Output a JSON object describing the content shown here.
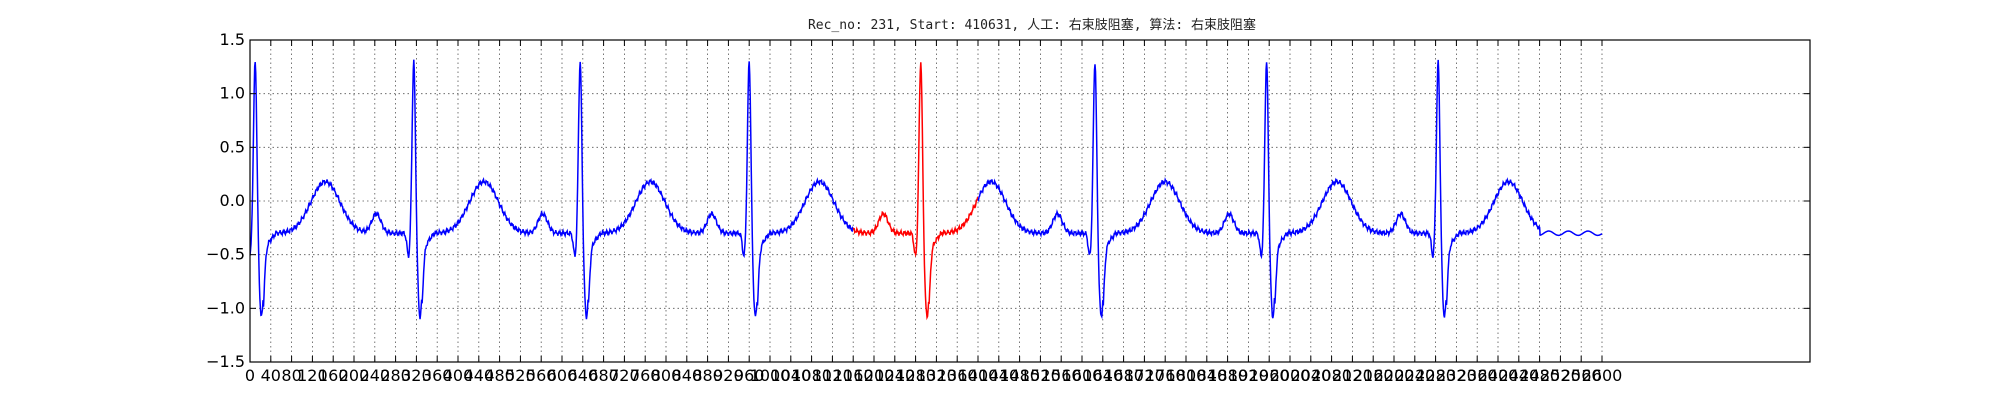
{
  "chart_data": {
    "type": "line",
    "title": "Rec_no: 231, Start: 410631, 人工: 右束肢阻塞, 算法: 右束肢阻塞",
    "xlabel": "",
    "ylabel": "",
    "xlim": [
      0,
      3000
    ],
    "ylim": [
      -1.5,
      1.5
    ],
    "grid": true,
    "y_ticks": [
      1.5,
      1.0,
      0.5,
      0.0,
      -0.5,
      -1.0,
      -1.5
    ],
    "y_tick_labels": [
      "1.5",
      "1.0",
      "0.5",
      "0.0",
      "−0.5",
      "−1.0",
      "−1.5"
    ],
    "x_ticks": [
      0,
      40,
      80,
      120,
      160,
      200,
      240,
      280,
      320,
      360,
      400,
      440,
      480,
      520,
      560,
      600,
      640,
      680,
      720,
      760,
      800,
      840,
      880,
      920,
      960,
      1000,
      1040,
      1080,
      1120,
      1160,
      1200,
      1240,
      1280,
      1320,
      1360,
      1400,
      1440,
      1480,
      1520,
      1560,
      1600,
      1640,
      1680,
      1720,
      1760,
      1800,
      1840,
      1880,
      1920,
      1960,
      2000,
      2040,
      2080,
      2120,
      2160,
      2200,
      2240,
      2280,
      2320,
      2360,
      2400,
      2440,
      2480,
      2520,
      2560,
      2600
    ],
    "x_tick_labels": [
      "0",
      "40",
      "80",
      "120",
      "160",
      "200",
      "240",
      "280",
      "320",
      "360",
      "400",
      "440",
      "480",
      "520",
      "560",
      "600",
      "640",
      "680",
      "720",
      "760",
      "800",
      "840",
      "880",
      "920",
      "960",
      "1000",
      "1040",
      "1080",
      "1120",
      "1160",
      "1200",
      "1240",
      "1280",
      "1320",
      "1360",
      "1400",
      "1440",
      "1480",
      "1520",
      "1560",
      "1600",
      "1640",
      "1680",
      "1720",
      "1760",
      "1800",
      "1840",
      "1880",
      "1920",
      "1960",
      "2000",
      "2040",
      "2080",
      "2120",
      "2160",
      "2200",
      "2240",
      "2280",
      "2320",
      "2360",
      "2400",
      "2440",
      "2480",
      "2520",
      "2560",
      "2600"
    ],
    "segment_color": "#ff0000",
    "segment_x_range": [
      1160,
      1400
    ],
    "series": [
      {
        "color": "#0000ff",
        "beat_times": [
          10,
          315,
          635,
          960,
          1290,
          1625,
          1955,
          2285
        ],
        "baseline_end": [
          2480,
          2600
        ],
        "points": [
          [
            0,
            -0.3
          ],
          [
            5,
            1.3
          ],
          [
            10,
            -0.6
          ],
          [
            30,
            -0.3
          ]
        ]
      }
    ]
  }
}
